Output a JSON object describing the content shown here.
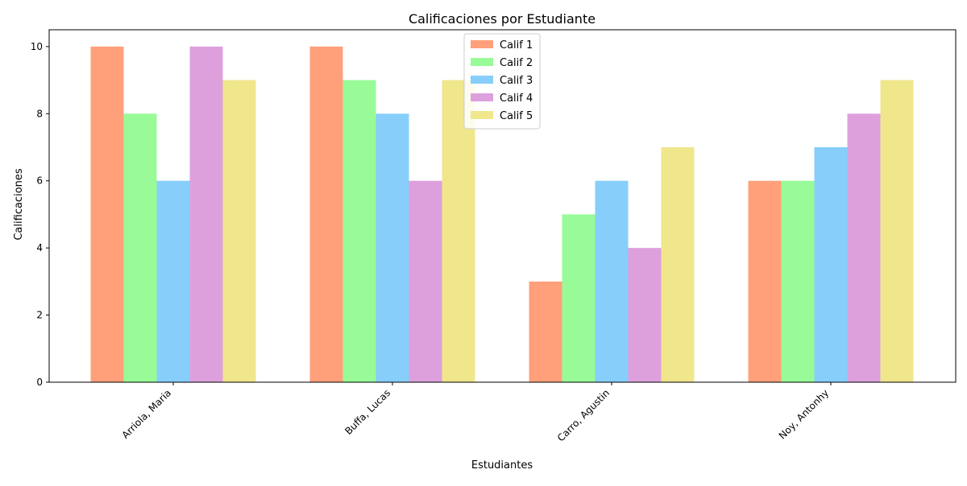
{
  "chart_data": {
    "type": "bar",
    "title": "Calificaciones por Estudiante",
    "xlabel": "Estudiantes",
    "ylabel": "Calificaciones",
    "categories": [
      "Arriola, Maria",
      "Buffa, Lucas",
      "Carro, Agustin",
      "Noy, Antonhy"
    ],
    "series": [
      {
        "name": "Calif 1",
        "color": "#FFA07A",
        "values": [
          10,
          10,
          3,
          6
        ]
      },
      {
        "name": "Calif 2",
        "color": "#98FB98",
        "values": [
          8,
          9,
          5,
          6
        ]
      },
      {
        "name": "Calif 3",
        "color": "#87CEFA",
        "values": [
          6,
          8,
          6,
          7
        ]
      },
      {
        "name": "Calif 4",
        "color": "#DDA0DD",
        "values": [
          10,
          6,
          4,
          8
        ]
      },
      {
        "name": "Calif 5",
        "color": "#F0E68C",
        "values": [
          9,
          9,
          7,
          9
        ]
      }
    ],
    "ylim": [
      0,
      10.5
    ],
    "yticks": [
      0,
      2,
      4,
      6,
      8,
      10
    ],
    "grid": false,
    "legend_position": "top-center"
  }
}
